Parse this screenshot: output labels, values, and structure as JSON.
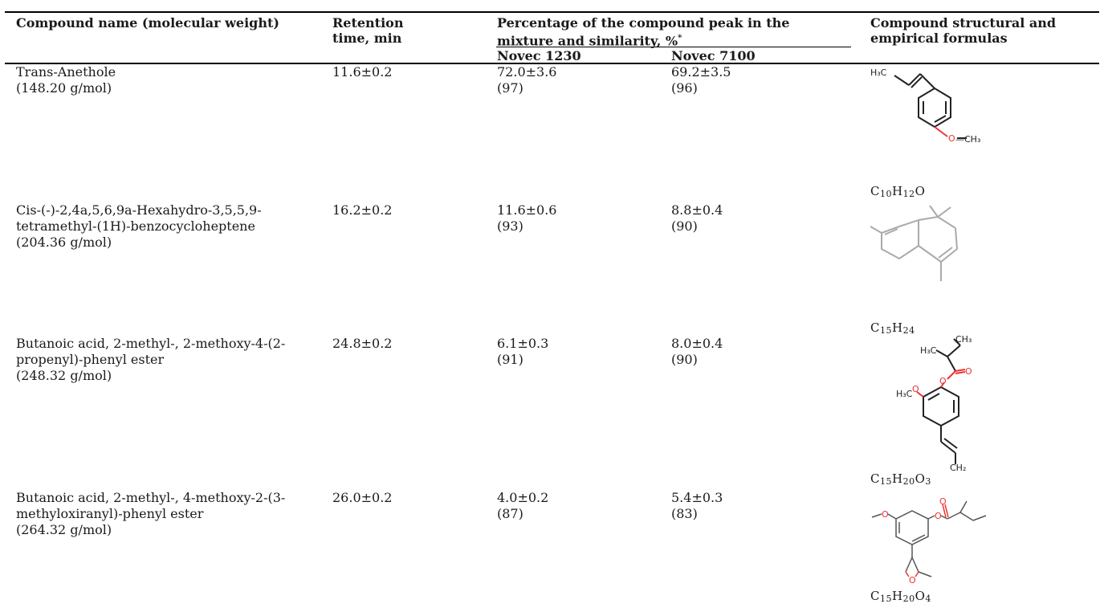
{
  "headers": {
    "compound": "Compound name (molecular weight)",
    "retention_line1": "Retention",
    "retention_line2": "time, min",
    "percentage_line1": "Percentage of the compound peak in the",
    "percentage_line2": "mixture and similarity, %",
    "percentage_mark": "*",
    "structure_line1": "Compound structural and",
    "structure_line2": "empirical formulas",
    "novec1230": "Novec 1230",
    "novec7100": "Novec 7100"
  },
  "rows": [
    {
      "name_lines": [
        "Trans-Anethole",
        "(148.20 g/mol)"
      ],
      "retention": "11.6±0.2",
      "novec1230_pct": "72.0±3.6",
      "novec1230_sim": "(97)",
      "novec7100_pct": "69.2±3.5",
      "novec7100_sim": "(96)",
      "formula": [
        {
          "el": "C",
          "n": "10"
        },
        {
          "el": "H",
          "n": "12"
        },
        {
          "el": "O",
          "n": ""
        }
      ],
      "structure_icon": "trans-anethole-structure-icon"
    },
    {
      "name_lines": [
        "Cis-(-)-2,4a,5,6,9a-Hexahydro-3,5,5,9-",
        "tetramethyl-(1H)-benzocycloheptene",
        "(204.36 g/mol)"
      ],
      "retention": "16.2±0.2",
      "novec1230_pct": "11.6±0.6",
      "novec1230_sim": "(93)",
      "novec7100_pct": "8.8±0.4",
      "novec7100_sim": "(90)",
      "formula": [
        {
          "el": "C",
          "n": "15"
        },
        {
          "el": "H",
          "n": "24"
        }
      ],
      "structure_icon": "benzocycloheptene-structure-icon"
    },
    {
      "name_lines": [
        "Butanoic acid, 2-methyl-, 2-methoxy-4-(2-",
        "propenyl)-phenyl ester",
        "(248.32 g/mol)"
      ],
      "retention": "24.8±0.2",
      "novec1230_pct": "6.1±0.3",
      "novec1230_sim": "(91)",
      "novec7100_pct": "8.0±0.4",
      "novec7100_sim": "(90)",
      "formula": [
        {
          "el": "C",
          "n": "15"
        },
        {
          "el": "H",
          "n": "20"
        },
        {
          "el": "O",
          "n": "3"
        }
      ],
      "structure_icon": "propenyl-phenyl-ester-structure-icon"
    },
    {
      "name_lines": [
        "Butanoic acid, 2-methyl-, 4-methoxy-2-(3-",
        "methyloxiranyl)-phenyl ester",
        "(264.32 g/mol)"
      ],
      "retention": "26.0±0.2",
      "novec1230_pct": "4.0±0.2",
      "novec1230_sim": "(87)",
      "novec7100_pct": "5.4±0.3",
      "novec7100_sim": "(83)",
      "formula": [
        {
          "el": "C",
          "n": "15"
        },
        {
          "el": "H",
          "n": "20"
        },
        {
          "el": "O",
          "n": "4"
        }
      ],
      "structure_icon": "oxiranyl-phenyl-ester-structure-icon"
    }
  ],
  "atom_labels": {
    "s1_h3c": "H₃C",
    "s1_o": "O",
    "s1_ch3": "—CH₃",
    "s3_ch3": "CH₃",
    "s3_h3c_top": "H₃C",
    "s3_h3c_left": "H₃C",
    "s3_o_ester": "O",
    "s3_o_carbonyl": "O",
    "s3_o_methoxy": "O",
    "s3_ch2": "CH₂",
    "s4_o_methoxy": "O",
    "s4_o_ester": "O",
    "s4_o_carbonyl": "O",
    "s4_o_epoxide": "O"
  }
}
